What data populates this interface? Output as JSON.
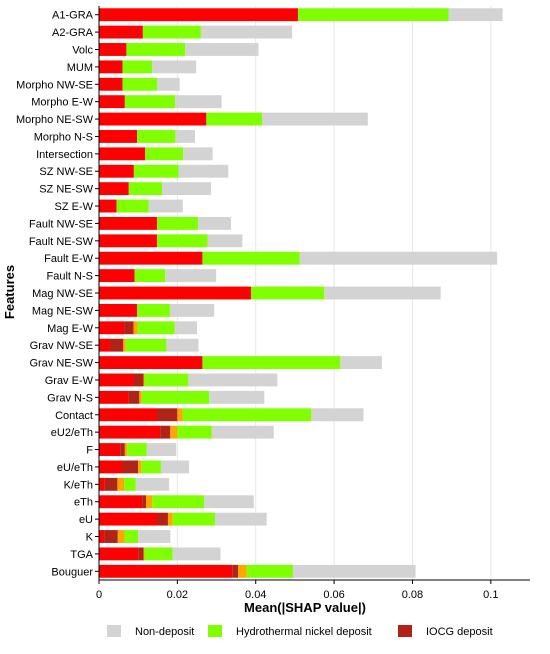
{
  "chart_data": {
    "type": "bar",
    "stacked": true,
    "orientation": "horizontal",
    "xlabel": "Mean(|SHAP value|)",
    "ylabel": "Features",
    "xlim": [
      0,
      0.11
    ],
    "xticks": [
      {
        "value": 0,
        "label": "0"
      },
      {
        "value": 0.02,
        "label": "0.02"
      },
      {
        "value": 0.04,
        "label": "0.04"
      },
      {
        "value": 0.06,
        "label": "0.06"
      },
      {
        "value": 0.08,
        "label": "0.08"
      },
      {
        "value": 0.1,
        "label": "0.1"
      }
    ],
    "grid": true,
    "legend_position": "bottom",
    "categories": [
      "A1-GRA",
      "A2-GRA",
      "Volc",
      "MUM",
      "Morpho NW-SE",
      "Morpho E-W",
      "Morpho NE-SW",
      "Morpho N-S",
      "Intersection",
      "SZ NW-SE",
      "SZ NE-SW",
      "SZ E-W",
      "Fault NW-SE",
      "Fault NE-SW",
      "Fault E-W",
      "Fault N-S",
      "Mag NW-SE",
      "Mag NE-SW",
      "Mag E-W",
      "Grav NW-SE",
      "Grav NE-SW",
      "Grav E-W",
      "Grav N-S",
      "Contact",
      "eU2/eTh",
      "F",
      "eU/eTh",
      "K/eTh",
      "eTh",
      "eU",
      "K",
      "TGA",
      "Bouguer"
    ],
    "series": [
      {
        "name": "",
        "color": "#ff0000",
        "values": [
          0.0508,
          0.0112,
          0.007,
          0.006,
          0.006,
          0.0066,
          0.0274,
          0.0097,
          0.0118,
          0.0089,
          0.0076,
          0.0045,
          0.0148,
          0.0148,
          0.0264,
          0.0091,
          0.0388,
          0.0097,
          0.0064,
          0.0028,
          0.0264,
          0.0088,
          0.0075,
          0.0148,
          0.0156,
          0.0054,
          0.006,
          0.0015,
          0.011,
          0.0148,
          0.0013,
          0.01,
          0.034
        ]
      },
      {
        "name": "IOCG deposit",
        "color": "#b02418",
        "values": [
          0,
          0,
          0,
          0,
          0,
          0,
          0,
          0,
          0,
          0,
          0,
          0,
          0,
          0,
          0,
          0,
          0,
          0,
          0.0024,
          0.0034,
          0,
          0.0026,
          0.0028,
          0.0052,
          0.0026,
          0.0012,
          0.004,
          0.0032,
          0.001,
          0.0028,
          0.0035,
          0.0014,
          0.0015
        ]
      },
      {
        "name": "",
        "color": "#ffa500",
        "values": [
          0,
          0,
          0,
          0,
          0,
          0,
          0,
          0,
          0,
          0,
          0,
          0,
          0,
          0,
          0,
          0,
          0,
          0,
          0.001,
          0.0006,
          0,
          0.0002,
          0.0006,
          0.0014,
          0.0018,
          0.0006,
          0.0008,
          0.0017,
          0.0016,
          0.0012,
          0.0017,
          0.0002,
          0.0022
        ]
      },
      {
        "name": "Hydrothermal nickel deposit",
        "color": "#7fff00",
        "values": [
          0.0384,
          0.0148,
          0.015,
          0.0076,
          0.0088,
          0.0128,
          0.0142,
          0.0098,
          0.0097,
          0.0114,
          0.0085,
          0.0082,
          0.0105,
          0.0129,
          0.0248,
          0.0078,
          0.0187,
          0.0084,
          0.0095,
          0.0104,
          0.0352,
          0.0112,
          0.0172,
          0.0328,
          0.0088,
          0.005,
          0.005,
          0.003,
          0.0132,
          0.0108,
          0.0035,
          0.0072,
          0.0118
        ]
      },
      {
        "name": "Non-deposit",
        "color": "#d3d3d3",
        "values": [
          0.0138,
          0.0233,
          0.0187,
          0.0112,
          0.0058,
          0.0119,
          0.027,
          0.005,
          0.0075,
          0.0127,
          0.0125,
          0.0087,
          0.0084,
          0.0089,
          0.0504,
          0.013,
          0.0297,
          0.0113,
          0.0057,
          0.0082,
          0.0106,
          0.0227,
          0.0141,
          0.0133,
          0.0158,
          0.0075,
          0.0072,
          0.0085,
          0.0127,
          0.0132,
          0.0082,
          0.0122,
          0.0313
        ]
      }
    ],
    "legend": [
      {
        "label": "Non-deposit",
        "color": "#d3d3d3"
      },
      {
        "label": "Hydrothermal nickel deposit",
        "color": "#7fff00"
      },
      {
        "label": "IOCG deposit",
        "color": "#b02418"
      }
    ]
  }
}
